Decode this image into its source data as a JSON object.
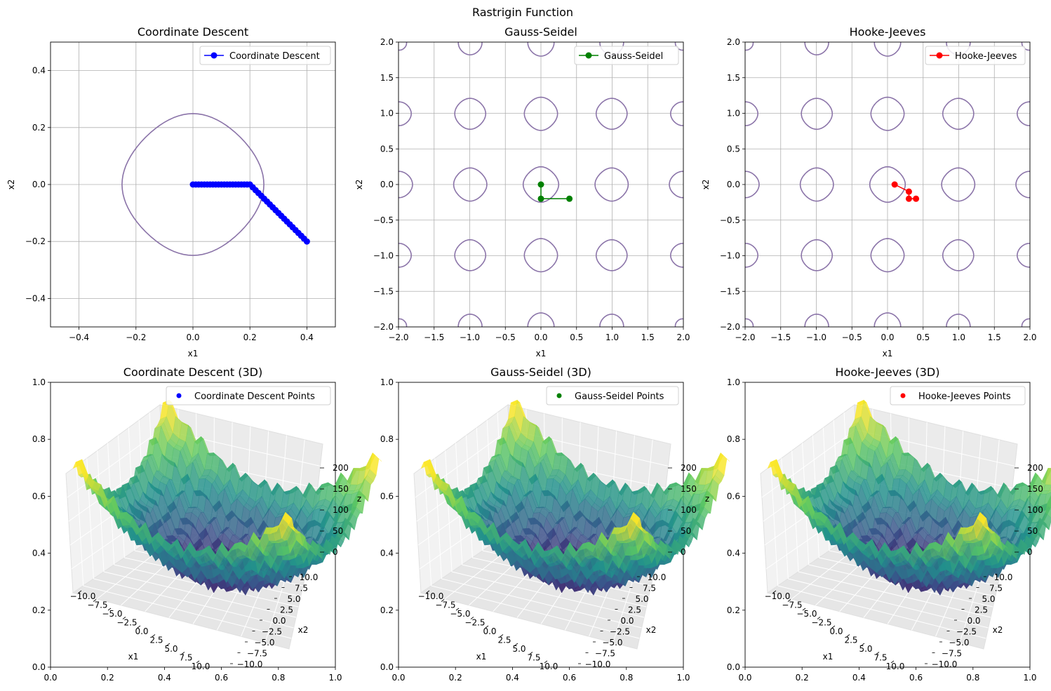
{
  "figure": {
    "suptitle": "Rastrigin Function"
  },
  "colors": {
    "cd": "#0000ff",
    "gs": "#008000",
    "hj": "#ff0000",
    "contour": "#8a73a8",
    "grid": "#b0b0b0"
  },
  "chart_data": [
    {
      "type": "line",
      "title": "Coordinate Descent",
      "xlabel": "x1",
      "ylabel": "x2",
      "xlim": [
        -0.5,
        0.5
      ],
      "ylim": [
        -0.5,
        0.5
      ],
      "xticks": [
        -0.4,
        -0.2,
        0.0,
        0.2,
        0.4
      ],
      "xtick_labels": [
        "−0.4",
        "−0.2",
        "0.0",
        "0.2",
        "0.4"
      ],
      "yticks": [
        -0.4,
        -0.2,
        0.0,
        0.2,
        0.4
      ],
      "ytick_labels": [
        "−0.4",
        "−0.2",
        "0.0",
        "0.2",
        "0.4"
      ],
      "grid": true,
      "legend": "top-right",
      "contours": "rastrigin",
      "series": [
        {
          "name": "Coordinate Descent",
          "color": "#0000ff",
          "marker": "o",
          "x": [
            0.0,
            0.01,
            0.02,
            0.03,
            0.04,
            0.05,
            0.06,
            0.07,
            0.08,
            0.09,
            0.1,
            0.11,
            0.12,
            0.13,
            0.14,
            0.15,
            0.16,
            0.17,
            0.18,
            0.19,
            0.2,
            0.21,
            0.22,
            0.23,
            0.24,
            0.25,
            0.26,
            0.27,
            0.28,
            0.29,
            0.3,
            0.31,
            0.32,
            0.33,
            0.34,
            0.35,
            0.36,
            0.37,
            0.38,
            0.39,
            0.4
          ],
          "y": [
            0.0,
            0.0,
            0.0,
            0.0,
            0.0,
            0.0,
            0.0,
            0.0,
            0.0,
            0.0,
            0.0,
            0.0,
            0.0,
            0.0,
            0.0,
            0.0,
            0.0,
            0.0,
            0.0,
            0.0,
            0.0,
            -0.01,
            -0.02,
            -0.03,
            -0.04,
            -0.05,
            -0.06,
            -0.07,
            -0.08,
            -0.09,
            -0.1,
            -0.11,
            -0.12,
            -0.13,
            -0.14,
            -0.15,
            -0.16,
            -0.17,
            -0.18,
            -0.19,
            -0.2
          ]
        }
      ]
    },
    {
      "type": "line",
      "title": "Gauss-Seidel",
      "xlabel": "x1",
      "ylabel": "x2",
      "xlim": [
        -2,
        2
      ],
      "ylim": [
        -2,
        2
      ],
      "xticks": [
        -2.0,
        -1.5,
        -1.0,
        -0.5,
        0.0,
        0.5,
        1.0,
        1.5,
        2.0
      ],
      "xtick_labels": [
        "−2.0",
        "−1.5",
        "−1.0",
        "−0.5",
        "0.0",
        "0.5",
        "1.0",
        "1.5",
        "2.0"
      ],
      "yticks": [
        -2.0,
        -1.5,
        -1.0,
        -0.5,
        0.0,
        0.5,
        1.0,
        1.5,
        2.0
      ],
      "ytick_labels": [
        "−2.0",
        "−1.5",
        "−1.0",
        "−0.5",
        "0.0",
        "0.5",
        "1.0",
        "1.5",
        "2.0"
      ],
      "grid": true,
      "legend": "top-right",
      "contours": "rastrigin",
      "series": [
        {
          "name": "Gauss-Seidel",
          "color": "#008000",
          "marker": "o",
          "x": [
            0.0,
            0.0,
            0.4
          ],
          "y": [
            0.0,
            -0.2,
            -0.2
          ]
        }
      ]
    },
    {
      "type": "line",
      "title": "Hooke-Jeeves",
      "xlabel": "x1",
      "ylabel": "x2",
      "xlim": [
        -2,
        2
      ],
      "ylim": [
        -2,
        2
      ],
      "xticks": [
        -2.0,
        -1.5,
        -1.0,
        -0.5,
        0.0,
        0.5,
        1.0,
        1.5,
        2.0
      ],
      "xtick_labels": [
        "−2.0",
        "−1.5",
        "−1.0",
        "−0.5",
        "0.0",
        "0.5",
        "1.0",
        "1.5",
        "2.0"
      ],
      "yticks": [
        -2.0,
        -1.5,
        -1.0,
        -0.5,
        0.0,
        0.5,
        1.0,
        1.5,
        2.0
      ],
      "ytick_labels": [
        "−2.0",
        "−1.5",
        "−1.0",
        "−0.5",
        "0.0",
        "0.5",
        "1.0",
        "1.5",
        "2.0"
      ],
      "grid": true,
      "legend": "top-right",
      "contours": "rastrigin",
      "series": [
        {
          "name": "Hooke-Jeeves",
          "color": "#ff0000",
          "marker": "o",
          "x": [
            0.1,
            0.3,
            0.3,
            0.4
          ],
          "y": [
            0.0,
            -0.1,
            -0.2,
            -0.2
          ]
        }
      ]
    },
    {
      "type": "scatter",
      "subtype": "surface3d",
      "title": "Coordinate Descent (3D)",
      "xlabel": "x1",
      "ylabel": "x2",
      "zlabel": "z",
      "frame_xticks": [
        0.0,
        0.2,
        0.4,
        0.6,
        0.8,
        1.0
      ],
      "frame_xtick_labels": [
        "0.0",
        "0.2",
        "0.4",
        "0.6",
        "0.8",
        "1.0"
      ],
      "frame_yticks": [
        0.0,
        0.2,
        0.4,
        0.6,
        0.8,
        1.0
      ],
      "frame_ytick_labels": [
        "0.0",
        "0.2",
        "0.4",
        "0.6",
        "0.8",
        "1.0"
      ],
      "xticks3d": [
        "−10.0",
        "−7.5",
        "−5.0",
        "−2.5",
        "0.0",
        "2.5",
        "5.0",
        "7.5",
        "10.0"
      ],
      "yticks3d": [
        "10.0",
        "7.5",
        "5.0",
        "2.5",
        "0.0",
        "−2.5",
        "−5.0",
        "−7.5",
        "−10.0"
      ],
      "zticks3d": [
        "0",
        "50",
        "100",
        "150",
        "200"
      ],
      "xlim": [
        -10,
        10
      ],
      "ylim": [
        -10,
        10
      ],
      "zlim": [
        0,
        220
      ],
      "legend": "top-right",
      "series": [
        {
          "name": "Coordinate Descent Points",
          "color": "#0000ff"
        }
      ]
    },
    {
      "type": "scatter",
      "subtype": "surface3d",
      "title": "Gauss-Seidel (3D)",
      "xlabel": "x1",
      "ylabel": "x2",
      "zlabel": "z",
      "frame_xticks": [
        0.0,
        0.2,
        0.4,
        0.6,
        0.8,
        1.0
      ],
      "frame_xtick_labels": [
        "0.0",
        "0.2",
        "0.4",
        "0.6",
        "0.8",
        "1.0"
      ],
      "frame_yticks": [
        0.0,
        0.2,
        0.4,
        0.6,
        0.8,
        1.0
      ],
      "frame_ytick_labels": [
        "0.0",
        "0.2",
        "0.4",
        "0.6",
        "0.8",
        "1.0"
      ],
      "xticks3d": [
        "−10.0",
        "−7.5",
        "−5.0",
        "−2.5",
        "0.0",
        "2.5",
        "5.0",
        "7.5",
        "10.0"
      ],
      "yticks3d": [
        "10.0",
        "7.5",
        "5.0",
        "2.5",
        "0.0",
        "−2.5",
        "−5.0",
        "−7.5",
        "−10.0"
      ],
      "zticks3d": [
        "0",
        "50",
        "100",
        "150",
        "200"
      ],
      "xlim": [
        -10,
        10
      ],
      "ylim": [
        -10,
        10
      ],
      "zlim": [
        0,
        220
      ],
      "legend": "top-right",
      "series": [
        {
          "name": "Gauss-Seidel Points",
          "color": "#008000"
        }
      ]
    },
    {
      "type": "scatter",
      "subtype": "surface3d",
      "title": "Hooke-Jeeves (3D)",
      "xlabel": "x1",
      "ylabel": "x2",
      "zlabel": "z",
      "frame_xticks": [
        0.0,
        0.2,
        0.4,
        0.6,
        0.8,
        1.0
      ],
      "frame_xtick_labels": [
        "0.0",
        "0.2",
        "0.4",
        "0.6",
        "0.8",
        "1.0"
      ],
      "frame_yticks": [
        0.0,
        0.2,
        0.4,
        0.6,
        0.8,
        1.0
      ],
      "frame_ytick_labels": [
        "0.0",
        "0.2",
        "0.4",
        "0.6",
        "0.8",
        "1.0"
      ],
      "xticks3d": [
        "−10.0",
        "−7.5",
        "−5.0",
        "−2.5",
        "0.0",
        "2.5",
        "5.0",
        "7.5",
        "10.0"
      ],
      "yticks3d": [
        "10.0",
        "7.5",
        "5.0",
        "2.5",
        "0.0",
        "−2.5",
        "−5.0",
        "−7.5",
        "−10.0"
      ],
      "zticks3d": [
        "0",
        "50",
        "100",
        "150",
        "200"
      ],
      "xlim": [
        -10,
        10
      ],
      "ylim": [
        -10,
        10
      ],
      "zlim": [
        0,
        220
      ],
      "legend": "top-right",
      "series": [
        {
          "name": "Hooke-Jeeves Points",
          "color": "#ff0000"
        }
      ]
    }
  ]
}
